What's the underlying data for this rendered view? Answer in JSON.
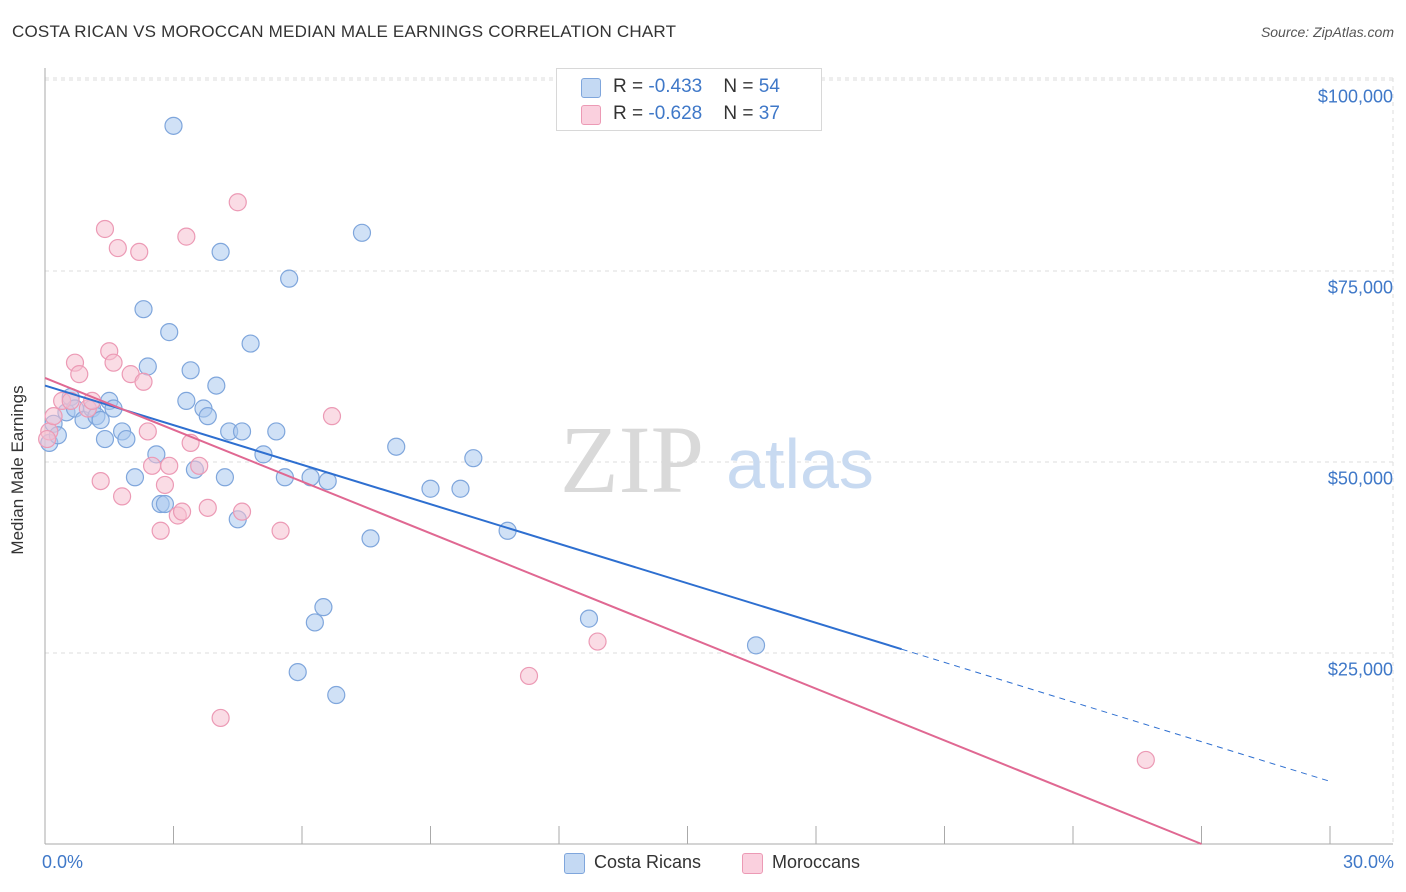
{
  "title": "COSTA RICAN VS MOROCCAN MEDIAN MALE EARNINGS CORRELATION CHART",
  "source": "Source: ZipAtlas.com",
  "watermark": {
    "zip": "ZIP",
    "atlas": "atlas"
  },
  "colors": {
    "blue_fill": "#a9c8ef",
    "blue_stroke": "#7fa6dc",
    "blue_line": "#2e6fd0",
    "pink_fill": "#f6bfd0",
    "pink_stroke": "#ec9ab5",
    "pink_line": "#e06892",
    "axis_text": "#3f78c8",
    "grid": "#dddddd"
  },
  "stats": [
    {
      "r_label": "R = ",
      "r_value": "-0.433",
      "n_label": "N = ",
      "n_value": "54",
      "color": "#a9c8ef"
    },
    {
      "r_label": "R = ",
      "r_value": "-0.628",
      "n_label": "N = ",
      "n_value": "37",
      "color": "#f6bfd0"
    }
  ],
  "legend": [
    {
      "label": "Costa Ricans",
      "color": "#a9c8ef"
    },
    {
      "label": "Moroccans",
      "color": "#f6bfd0"
    }
  ],
  "chart_data": {
    "type": "scatter",
    "title": "COSTA RICAN VS MOROCCAN MEDIAN MALE EARNINGS CORRELATION CHART",
    "xlabel": "",
    "ylabel": "Median Male Earnings",
    "xlim": [
      0,
      30
    ],
    "ylim": [
      0,
      105000
    ],
    "x_tick_labels": [
      "0.0%",
      "30.0%"
    ],
    "y_ticks": [
      25000,
      50000,
      75000,
      100000
    ],
    "y_tick_labels": [
      "$25,000",
      "$50,000",
      "$75,000",
      "$100,000"
    ],
    "grid": true,
    "legend_position": "bottom",
    "series": [
      {
        "name": "Costa Ricans",
        "trend": {
          "x0": 0,
          "y0": 60000,
          "x1": 20.0,
          "y1": 25500,
          "dashed_to_x": 30,
          "dashed_to_y": 8200
        },
        "points": [
          [
            0.1,
            52500
          ],
          [
            0.2,
            55000
          ],
          [
            0.3,
            53500
          ],
          [
            0.5,
            56500
          ],
          [
            0.6,
            58500
          ],
          [
            0.7,
            57000
          ],
          [
            0.9,
            55500
          ],
          [
            1.1,
            57000
          ],
          [
            1.2,
            56000
          ],
          [
            1.3,
            55500
          ],
          [
            1.4,
            53000
          ],
          [
            1.5,
            58000
          ],
          [
            1.6,
            57000
          ],
          [
            1.8,
            54000
          ],
          [
            1.9,
            53000
          ],
          [
            2.1,
            48000
          ],
          [
            2.3,
            70000
          ],
          [
            2.4,
            62500
          ],
          [
            2.6,
            51000
          ],
          [
            2.7,
            44500
          ],
          [
            2.8,
            44500
          ],
          [
            3.0,
            94000
          ],
          [
            2.9,
            67000
          ],
          [
            3.3,
            58000
          ],
          [
            3.4,
            62000
          ],
          [
            3.5,
            49000
          ],
          [
            3.7,
            57000
          ],
          [
            3.8,
            56000
          ],
          [
            4.0,
            60000
          ],
          [
            4.1,
            77500
          ],
          [
            4.2,
            48000
          ],
          [
            4.3,
            54000
          ],
          [
            4.5,
            42500
          ],
          [
            4.6,
            54000
          ],
          [
            4.8,
            65500
          ],
          [
            5.1,
            51000
          ],
          [
            5.4,
            54000
          ],
          [
            5.6,
            48000
          ],
          [
            5.7,
            74000
          ],
          [
            5.9,
            22500
          ],
          [
            6.2,
            48000
          ],
          [
            6.3,
            29000
          ],
          [
            6.5,
            31000
          ],
          [
            6.6,
            47500
          ],
          [
            6.8,
            19500
          ],
          [
            7.4,
            80000
          ],
          [
            7.6,
            40000
          ],
          [
            8.2,
            52000
          ],
          [
            9.0,
            46500
          ],
          [
            9.7,
            46500
          ],
          [
            10.0,
            50500
          ],
          [
            10.8,
            41000
          ],
          [
            12.7,
            29500
          ],
          [
            16.6,
            26000
          ]
        ]
      },
      {
        "name": "Moroccans",
        "trend": {
          "x0": 0,
          "y0": 61000,
          "x1": 27.0,
          "y1": 0
        },
        "points": [
          [
            0.1,
            54000
          ],
          [
            0.2,
            56000
          ],
          [
            0.4,
            58000
          ],
          [
            0.6,
            58000
          ],
          [
            0.7,
            63000
          ],
          [
            0.8,
            61500
          ],
          [
            1.0,
            57000
          ],
          [
            1.1,
            58000
          ],
          [
            1.3,
            47500
          ],
          [
            1.4,
            80500
          ],
          [
            1.5,
            64500
          ],
          [
            1.6,
            63000
          ],
          [
            1.7,
            78000
          ],
          [
            1.8,
            45500
          ],
          [
            2.0,
            61500
          ],
          [
            2.2,
            77500
          ],
          [
            2.3,
            60500
          ],
          [
            2.4,
            54000
          ],
          [
            2.5,
            49500
          ],
          [
            2.7,
            41000
          ],
          [
            2.8,
            47000
          ],
          [
            2.9,
            49500
          ],
          [
            3.1,
            43000
          ],
          [
            3.2,
            43500
          ],
          [
            3.3,
            79500
          ],
          [
            3.4,
            52500
          ],
          [
            3.6,
            49500
          ],
          [
            3.8,
            44000
          ],
          [
            4.1,
            16500
          ],
          [
            4.5,
            84000
          ],
          [
            4.6,
            43500
          ],
          [
            5.5,
            41000
          ],
          [
            6.7,
            56000
          ],
          [
            11.3,
            22000
          ],
          [
            12.9,
            26500
          ],
          [
            25.7,
            11000
          ],
          [
            0.05,
            53000
          ]
        ]
      }
    ]
  }
}
